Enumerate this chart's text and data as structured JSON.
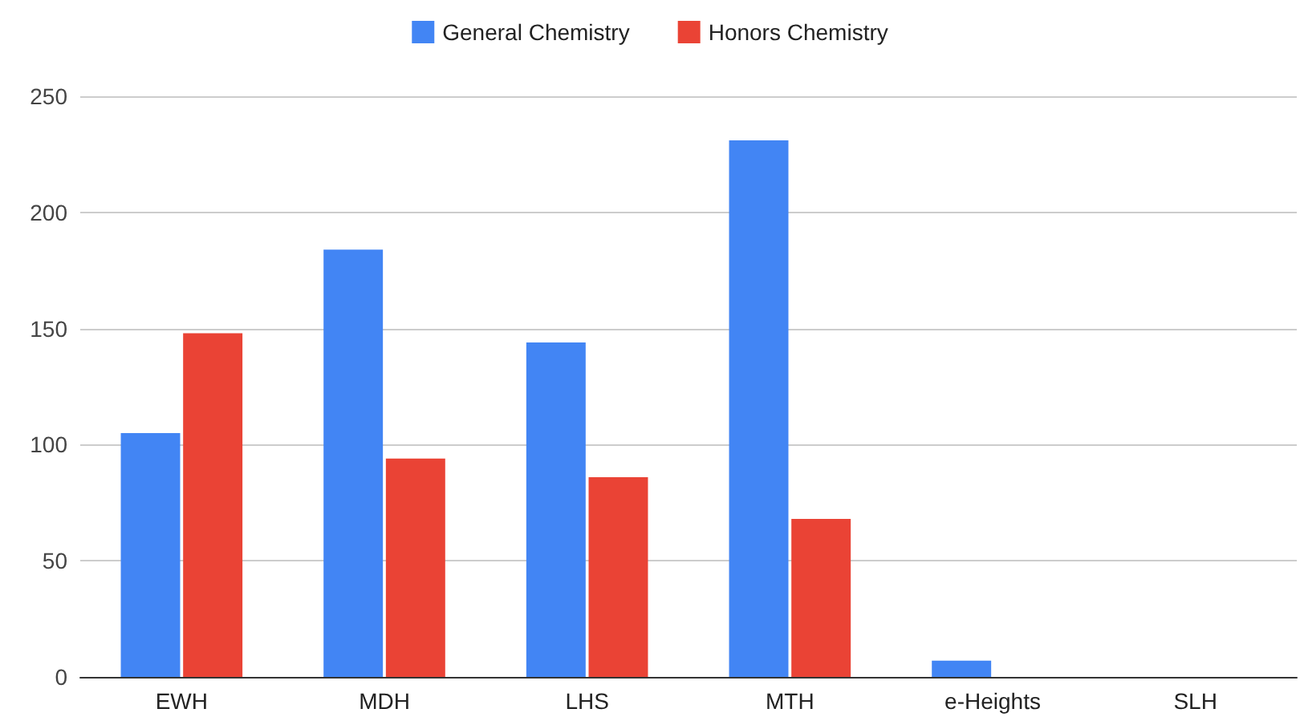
{
  "chart_data": {
    "type": "bar",
    "categories": [
      "EWH",
      "MDH",
      "LHS",
      "MTH",
      "e-Heights",
      "SLH"
    ],
    "series": [
      {
        "name": "General Chemistry",
        "color": "#4285f4",
        "values": [
          105,
          184,
          144,
          231,
          7,
          0
        ]
      },
      {
        "name": "Honors Chemistry",
        "color": "#ea4335",
        "values": [
          148,
          94,
          86,
          68,
          0,
          0
        ]
      }
    ],
    "ylim": [
      0,
      250
    ],
    "yticks": [
      0,
      50,
      100,
      150,
      200,
      250
    ],
    "grid": "y",
    "legend": "top"
  }
}
